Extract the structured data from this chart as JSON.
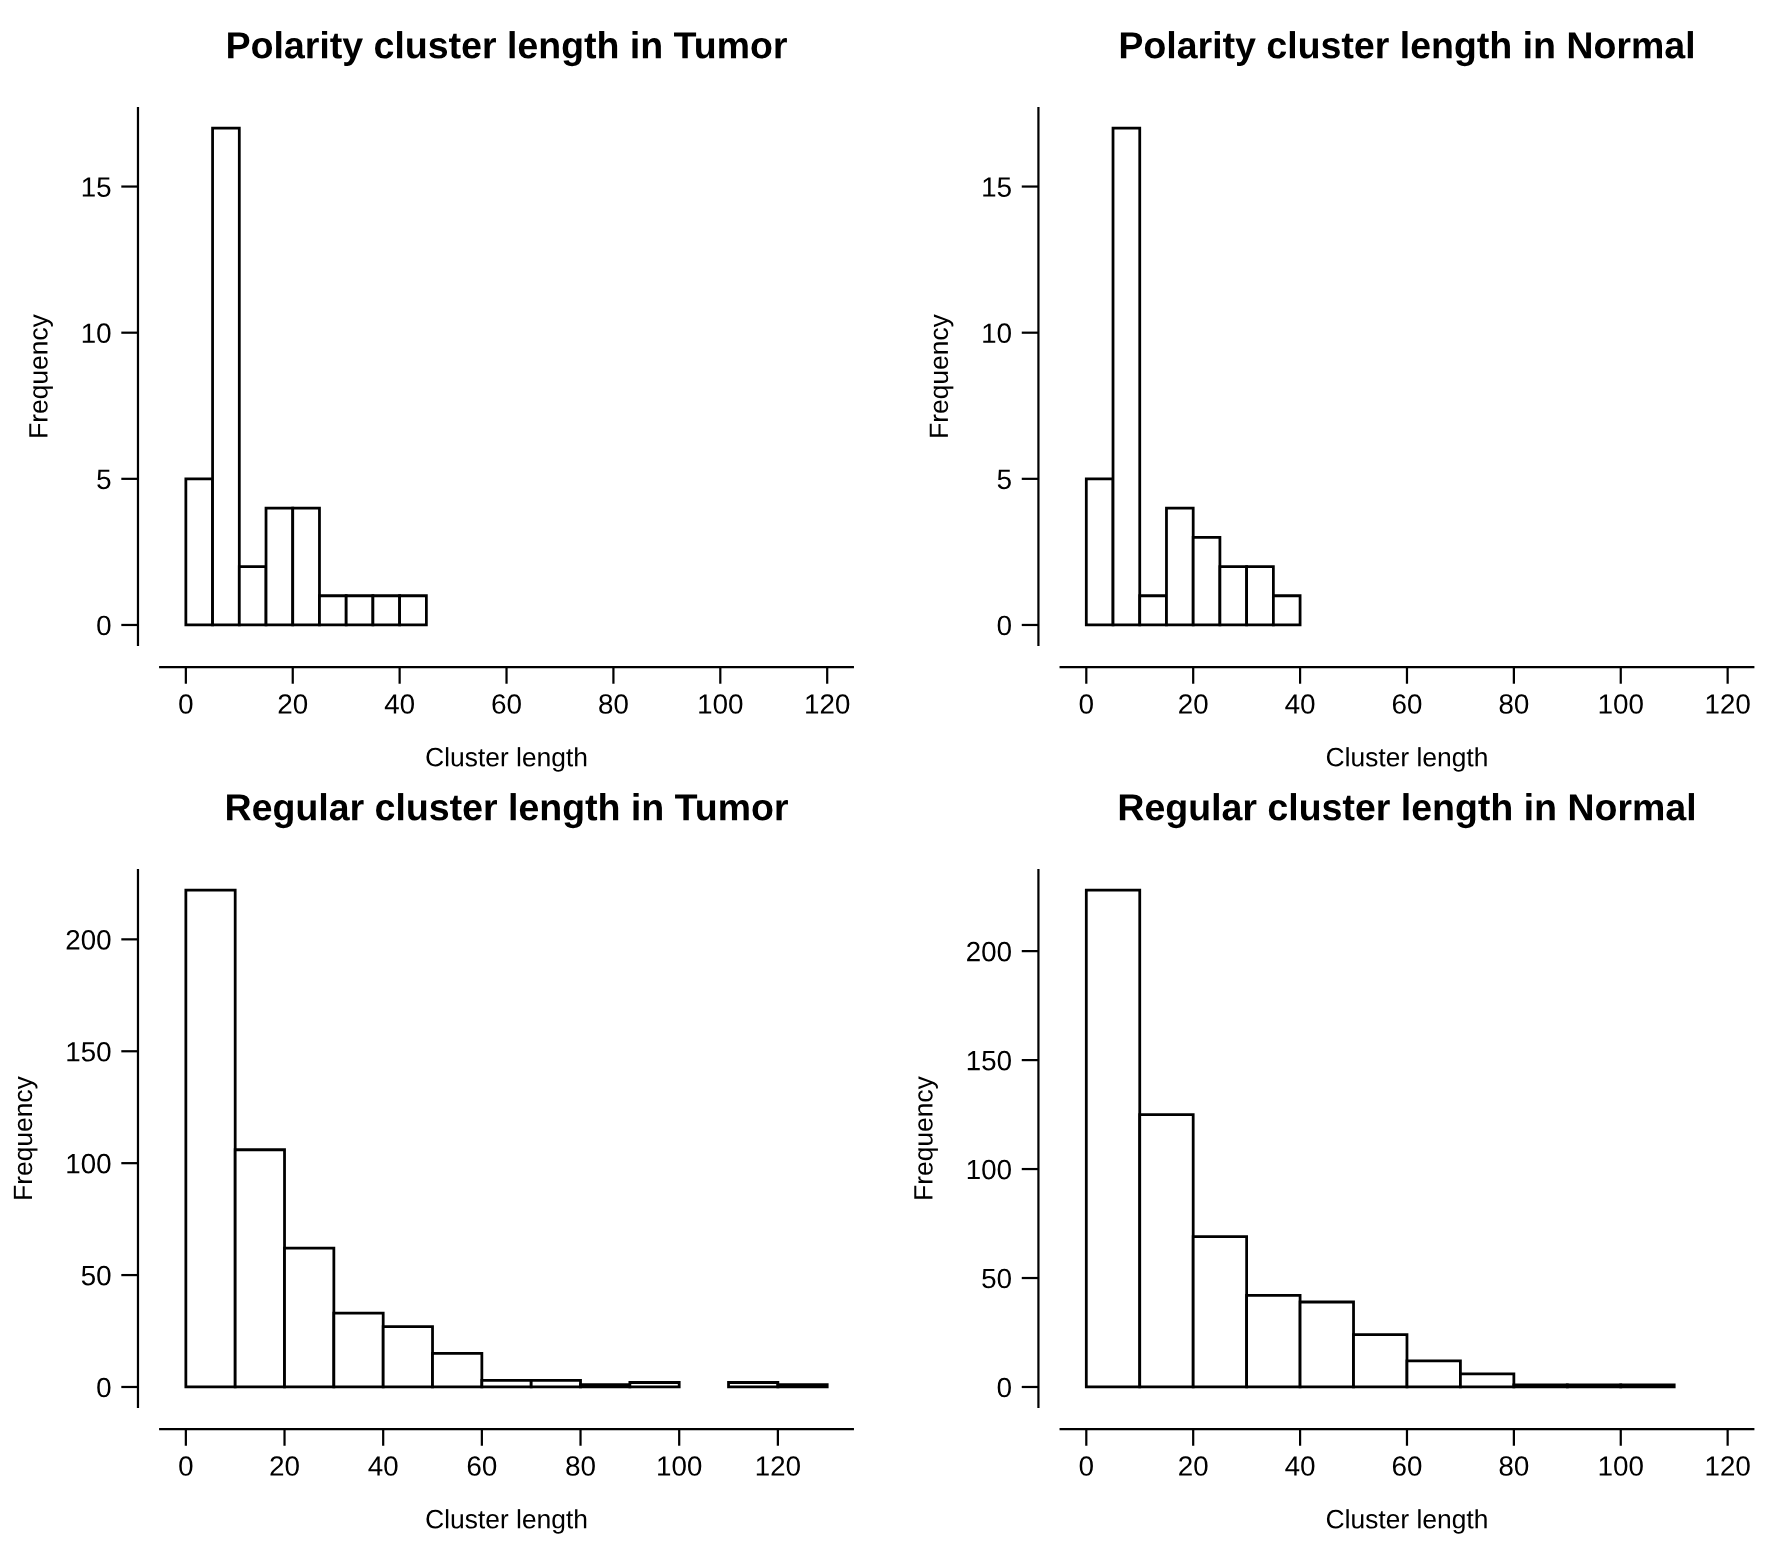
{
  "chart_data": [
    {
      "type": "histogram",
      "title": "Polarity cluster length in Tumor",
      "xlabel": "Cluster length",
      "ylabel": "Frequency",
      "bins": [
        0,
        5,
        10,
        15,
        20,
        25,
        30,
        35,
        40,
        45
      ],
      "values": [
        5,
        17,
        2,
        4,
        4,
        1,
        1,
        1,
        1
      ],
      "color": "#ffffff",
      "xlim": [
        -4.8,
        124.8
      ],
      "xticks": [
        0,
        20,
        40,
        60,
        80,
        100,
        120
      ],
      "ylim": [
        -0.68,
        17.68
      ],
      "yticks": [
        0,
        5,
        10,
        15
      ],
      "grid": false
    },
    {
      "type": "histogram",
      "title": "Polarity cluster length in Normal",
      "xlabel": "Cluster length",
      "ylabel": "Frequency",
      "bins": [
        0,
        5,
        10,
        15,
        20,
        25,
        30,
        35,
        40
      ],
      "values": [
        5,
        17,
        1,
        4,
        3,
        2,
        2,
        1
      ],
      "color": "#ffffff",
      "xlim": [
        -4.8,
        124.8
      ],
      "xticks": [
        0,
        20,
        40,
        60,
        80,
        100,
        120
      ],
      "ylim": [
        -0.68,
        17.68
      ],
      "yticks": [
        0,
        5,
        10,
        15
      ],
      "grid": false
    },
    {
      "type": "histogram",
      "title": "Regular cluster length in Tumor",
      "xlabel": "Cluster length",
      "ylabel": "Frequency",
      "bins": [
        0,
        10,
        20,
        30,
        40,
        50,
        60,
        70,
        80,
        90,
        100,
        110,
        120,
        130
      ],
      "values": [
        222,
        106,
        62,
        33,
        27,
        15,
        3,
        3,
        1,
        2,
        0,
        2,
        1
      ],
      "color": "#ffffff",
      "xlim": [
        -5.2,
        135.2
      ],
      "xticks": [
        0,
        20,
        40,
        60,
        80,
        100,
        120
      ],
      "ylim": [
        -8.88,
        230.88
      ],
      "yticks": [
        0,
        50,
        100,
        150,
        200
      ],
      "grid": false
    },
    {
      "type": "histogram",
      "title": "Regular cluster length in Normal",
      "xlabel": "Cluster length",
      "ylabel": "Frequency",
      "bins": [
        0,
        10,
        20,
        30,
        40,
        50,
        60,
        70,
        80,
        90,
        100,
        110
      ],
      "values": [
        228,
        125,
        69,
        42,
        39,
        24,
        12,
        6,
        1,
        1,
        1
      ],
      "color": "#ffffff",
      "xlim": [
        -4.8,
        124.8
      ],
      "xticks": [
        0,
        20,
        40,
        60,
        80,
        100,
        120
      ],
      "ylim": [
        -9.12,
        237.12
      ],
      "yticks": [
        0,
        50,
        100,
        150,
        200
      ],
      "grid": false
    }
  ]
}
